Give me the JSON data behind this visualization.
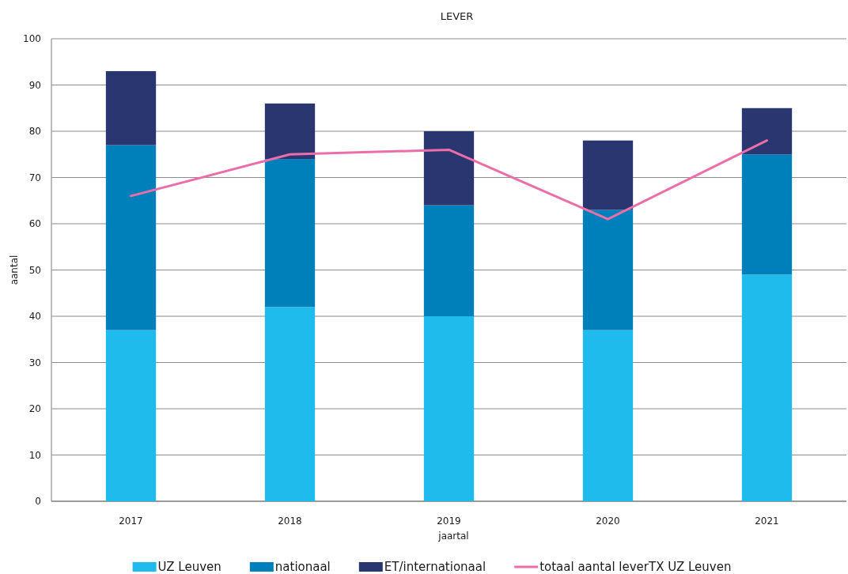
{
  "chart_data": {
    "type": "bar",
    "title": "LEVER",
    "xlabel": "jaartal",
    "ylabel": "aantal",
    "categories": [
      "2017",
      "2018",
      "2019",
      "2020",
      "2021"
    ],
    "stacked": true,
    "series": [
      {
        "name": "UZ Leuven",
        "color": "#1fbbec",
        "values": [
          37,
          42,
          40,
          37,
          49
        ]
      },
      {
        "name": "nationaal",
        "color": "#0080ba",
        "values": [
          40,
          32,
          24,
          26,
          26
        ]
      },
      {
        "name": "ET/internationaal",
        "color": "#29366f",
        "values": [
          16,
          12,
          16,
          15,
          10
        ]
      },
      {
        "name": "totaal aantal leverTX UZ Leuven",
        "type": "line",
        "color": "#ec6ea8",
        "values": [
          66,
          75,
          76,
          61,
          78
        ]
      }
    ],
    "ylim": [
      0,
      100
    ],
    "yticks": [
      0,
      10,
      20,
      30,
      40,
      50,
      60,
      70,
      80,
      90,
      100
    ],
    "grid": "y",
    "legend": "bottom"
  }
}
